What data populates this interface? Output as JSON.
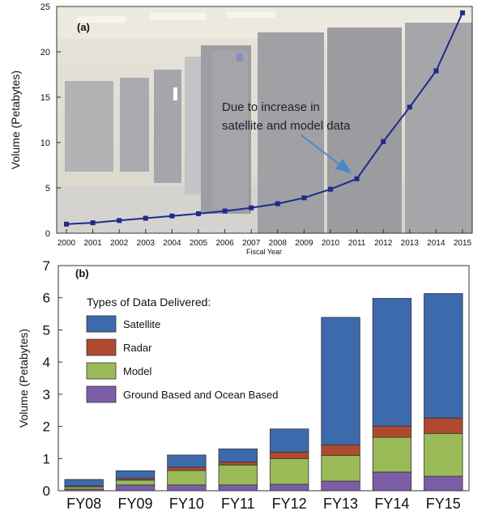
{
  "chart_data": [
    {
      "type": "line",
      "panel_label": "(a)",
      "xlabel": "Fiscal Year",
      "ylabel": "Volume (Petabytes)",
      "ylim": [
        0,
        25
      ],
      "yticks": [
        0,
        5,
        10,
        15,
        20,
        25
      ],
      "xlim": [
        2000,
        2015
      ],
      "x": [
        2000,
        2001,
        2002,
        2003,
        2004,
        2005,
        2006,
        2007,
        2008,
        2009,
        2010,
        2011,
        2012,
        2013,
        2014,
        2015
      ],
      "y": [
        1.0,
        1.15,
        1.4,
        1.65,
        1.9,
        2.15,
        2.45,
        2.8,
        3.25,
        3.9,
        4.85,
        6.0,
        10.1,
        13.9,
        17.9,
        24.3
      ],
      "annotation": {
        "text_line1": "Due to increase in",
        "text_line2": "satellite and model data",
        "points_to_x": 2011
      },
      "background": "data center photograph",
      "colors": {
        "line": "#1f2a8c",
        "arrow": "#4a88c9"
      }
    },
    {
      "type": "bar",
      "stacked": true,
      "panel_label": "(b)",
      "ylabel": "Volume (Petabytes)",
      "ylim": [
        0,
        7
      ],
      "yticks": [
        0,
        1,
        2,
        3,
        4,
        5,
        6,
        7
      ],
      "categories": [
        "FY08",
        "FY09",
        "FY10",
        "FY11",
        "FY12",
        "FY13",
        "FY14",
        "FY15"
      ],
      "legend_title": "Types of Data Delivered:",
      "legend_position": "top-left",
      "series": [
        {
          "name": "Ground Based and Ocean Based",
          "color": "#7b5ea7",
          "values": [
            0.05,
            0.18,
            0.18,
            0.18,
            0.2,
            0.3,
            0.58,
            0.45
          ]
        },
        {
          "name": "Model",
          "color": "#9bbb59",
          "values": [
            0.07,
            0.15,
            0.45,
            0.62,
            0.8,
            0.8,
            1.08,
            1.33
          ]
        },
        {
          "name": "Radar",
          "color": "#b04a2e",
          "values": [
            0.03,
            0.05,
            0.1,
            0.1,
            0.2,
            0.32,
            0.35,
            0.48
          ]
        },
        {
          "name": "Satellite",
          "color": "#3d6aad",
          "values": [
            0.2,
            0.24,
            0.38,
            0.4,
            0.72,
            3.97,
            3.97,
            3.87
          ]
        }
      ]
    }
  ]
}
